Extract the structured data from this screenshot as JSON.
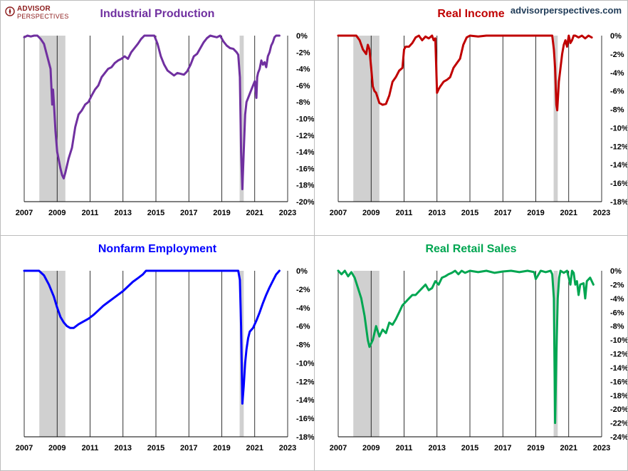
{
  "logo": {
    "line1": "ADVISOR",
    "line2": "PERSPECTIVES"
  },
  "site": "advisorperspectives.com",
  "recessions": [
    [
      2007.917,
      2009.5
    ],
    [
      2020.083,
      2020.333
    ]
  ],
  "chart_data": [
    {
      "type": "line",
      "title": "Industrial Production",
      "color": "#7030a0",
      "x_ticks": [
        2007,
        2009,
        2011,
        2013,
        2015,
        2017,
        2019,
        2021,
        2023
      ],
      "y_ticks": [
        0,
        -2,
        -4,
        -6,
        -8,
        -10,
        -12,
        -14,
        -16,
        -18,
        -20
      ],
      "y_tick_labels": [
        "0%",
        "-2%",
        "-4%",
        "-6%",
        "-8%",
        "-10%",
        "-12%",
        "-14%",
        "-16%",
        "-18%",
        "-20%"
      ],
      "xlim": [
        2007,
        2023
      ],
      "ylim": [
        -20,
        0
      ],
      "grid": "vertical",
      "x": [
        2007.0,
        2007.2,
        2007.4,
        2007.6,
        2007.8,
        2008.0,
        2008.2,
        2008.4,
        2008.6,
        2008.7,
        2008.75,
        2008.8,
        2008.9,
        2009.0,
        2009.1,
        2009.2,
        2009.3,
        2009.4,
        2009.5,
        2009.7,
        2009.9,
        2010.1,
        2010.3,
        2010.5,
        2010.7,
        2010.9,
        2011.1,
        2011.3,
        2011.5,
        2011.7,
        2011.9,
        2012.1,
        2012.3,
        2012.5,
        2012.7,
        2012.9,
        2013.1,
        2013.3,
        2013.5,
        2013.7,
        2013.9,
        2014.1,
        2014.3,
        2014.5,
        2014.7,
        2014.9,
        2015.1,
        2015.3,
        2015.5,
        2015.7,
        2015.9,
        2016.1,
        2016.3,
        2016.5,
        2016.7,
        2016.9,
        2017.1,
        2017.3,
        2017.5,
        2017.7,
        2017.9,
        2018.1,
        2018.3,
        2018.5,
        2018.7,
        2018.9,
        2019.1,
        2019.3,
        2019.5,
        2019.7,
        2019.9,
        2020.0,
        2020.1,
        2020.17,
        2020.25,
        2020.33,
        2020.42,
        2020.5,
        2020.6,
        2020.7,
        2020.8,
        2020.9,
        2021.0,
        2021.1,
        2021.15,
        2021.2,
        2021.3,
        2021.4,
        2021.5,
        2021.6,
        2021.7,
        2021.8,
        2021.9,
        2022.0,
        2022.1,
        2022.2,
        2022.3,
        2022.4,
        2022.5
      ],
      "y": [
        -0.2,
        0,
        -0.1,
        0,
        0,
        -0.4,
        -1.0,
        -2.5,
        -4.0,
        -8.3,
        -6.5,
        -8.0,
        -11.5,
        -14.0,
        -15.0,
        -16.0,
        -16.8,
        -17.2,
        -16.5,
        -14.8,
        -13.5,
        -11.0,
        -9.5,
        -9.0,
        -8.3,
        -8.0,
        -7.2,
        -6.5,
        -6.0,
        -5.0,
        -4.5,
        -4.0,
        -3.8,
        -3.3,
        -3.0,
        -2.8,
        -2.5,
        -2.8,
        -2.0,
        -1.5,
        -1.0,
        -0.4,
        0,
        0,
        0,
        0,
        -1.0,
        -2.5,
        -3.5,
        -4.2,
        -4.5,
        -4.8,
        -4.5,
        -4.6,
        -4.7,
        -4.3,
        -3.5,
        -2.5,
        -2.2,
        -1.5,
        -0.8,
        -0.3,
        0,
        -0.1,
        -0.2,
        0,
        -0.7,
        -1.2,
        -1.5,
        -1.6,
        -2.0,
        -2.3,
        -5.0,
        -14.0,
        -18.5,
        -14.0,
        -9.5,
        -8.0,
        -7.5,
        -7.0,
        -6.5,
        -6.0,
        -5.5,
        -7.5,
        -5.0,
        -4.5,
        -4.0,
        -3.0,
        -3.5,
        -3.2,
        -3.8,
        -2.5,
        -2.0,
        -1.2,
        -0.8,
        -0.2,
        0,
        0,
        0
      ]
    },
    {
      "type": "line",
      "title": "Real Income",
      "color": "#c00000",
      "x_ticks": [
        2007,
        2009,
        2011,
        2013,
        2015,
        2017,
        2019,
        2021,
        2023
      ],
      "y_ticks": [
        0,
        -2,
        -4,
        -6,
        -8,
        -10,
        -12,
        -14,
        -16,
        -18
      ],
      "y_tick_labels": [
        "0%",
        "-2%",
        "-4%",
        "-6%",
        "-8%",
        "-10%",
        "-12%",
        "-14%",
        "-16%",
        "-18%"
      ],
      "xlim": [
        2007,
        2023
      ],
      "ylim": [
        -18,
        0
      ],
      "grid": "vertical",
      "x": [
        2007.0,
        2007.3,
        2007.6,
        2007.9,
        2008.1,
        2008.3,
        2008.5,
        2008.7,
        2008.8,
        2008.9,
        2009.0,
        2009.1,
        2009.2,
        2009.3,
        2009.5,
        2009.7,
        2009.9,
        2010.1,
        2010.3,
        2010.5,
        2010.7,
        2010.9,
        2011.0,
        2011.1,
        2011.3,
        2011.5,
        2011.7,
        2011.9,
        2012.1,
        2012.3,
        2012.5,
        2012.7,
        2012.8,
        2012.9,
        2013.0,
        2013.1,
        2013.2,
        2013.4,
        2013.6,
        2013.8,
        2014.0,
        2014.2,
        2014.4,
        2014.6,
        2014.8,
        2015.0,
        2015.5,
        2016.0,
        2016.5,
        2017.0,
        2017.5,
        2018.0,
        2018.5,
        2019.0,
        2019.5,
        2019.8,
        2020.0,
        2020.1,
        2020.17,
        2020.25,
        2020.3,
        2020.4,
        2020.5,
        2020.6,
        2020.7,
        2020.8,
        2020.9,
        2021.0,
        2021.1,
        2021.2,
        2021.3,
        2021.4,
        2021.6,
        2021.8,
        2022.0,
        2022.2,
        2022.4
      ],
      "y": [
        0,
        0,
        0,
        0,
        0,
        -0.5,
        -1.5,
        -2.0,
        -1.0,
        -1.5,
        -3.5,
        -5.5,
        -6.0,
        -6.2,
        -7.3,
        -7.5,
        -7.4,
        -6.5,
        -5.0,
        -4.5,
        -3.8,
        -3.5,
        -1.5,
        -1.2,
        -1.2,
        -0.8,
        -0.2,
        0,
        -0.5,
        -0.1,
        -0.3,
        0,
        -0.5,
        -0.3,
        -6.2,
        -5.8,
        -5.5,
        -5.0,
        -4.8,
        -4.5,
        -3.5,
        -3.0,
        -2.5,
        -1.0,
        -0.2,
        0,
        -0.1,
        0,
        0,
        0,
        0,
        0,
        0,
        0,
        0,
        0,
        0,
        -1.5,
        -3.5,
        -7.5,
        -8.1,
        -5.0,
        -3.5,
        -2.0,
        -1.0,
        -0.5,
        -1.2,
        0,
        -0.8,
        -0.5,
        0,
        0,
        -0.2,
        0,
        -0.3,
        0,
        -0.2
      ]
    },
    {
      "type": "line",
      "title": "Nonfarm Employment",
      "color": "#0000ff",
      "x_ticks": [
        2007,
        2009,
        2011,
        2013,
        2015,
        2017,
        2019,
        2021,
        2023
      ],
      "y_ticks": [
        0,
        -2,
        -4,
        -6,
        -8,
        -10,
        -12,
        -14,
        -16,
        -18
      ],
      "y_tick_labels": [
        "0%",
        "-2%",
        "-4%",
        "-6%",
        "-8%",
        "-10%",
        "-12%",
        "-14%",
        "-16%",
        "-18%"
      ],
      "xlim": [
        2007,
        2023
      ],
      "ylim": [
        -18,
        0
      ],
      "grid": "vertical",
      "x": [
        2007.0,
        2007.5,
        2007.9,
        2008.2,
        2008.5,
        2008.8,
        2009.0,
        2009.2,
        2009.4,
        2009.6,
        2009.8,
        2010.0,
        2010.3,
        2010.6,
        2010.9,
        2011.2,
        2011.5,
        2011.8,
        2012.1,
        2012.4,
        2012.7,
        2013.0,
        2013.3,
        2013.6,
        2013.9,
        2014.2,
        2014.4,
        2015.0,
        2016.0,
        2017.0,
        2018.0,
        2019.0,
        2020.0,
        2020.1,
        2020.17,
        2020.25,
        2020.33,
        2020.42,
        2020.5,
        2020.6,
        2020.7,
        2020.9,
        2021.1,
        2021.3,
        2021.5,
        2021.7,
        2021.9,
        2022.1,
        2022.3,
        2022.5
      ],
      "y": [
        0,
        0,
        0,
        -0.5,
        -1.5,
        -2.8,
        -4.0,
        -5.0,
        -5.6,
        -6.0,
        -6.2,
        -6.2,
        -5.8,
        -5.5,
        -5.2,
        -4.8,
        -4.3,
        -3.8,
        -3.4,
        -3.0,
        -2.6,
        -2.2,
        -1.7,
        -1.2,
        -0.8,
        -0.4,
        0,
        0,
        0,
        0,
        0,
        0,
        0,
        -1.0,
        -6.0,
        -14.4,
        -12.5,
        -10.0,
        -8.5,
        -7.3,
        -6.6,
        -6.2,
        -5.4,
        -4.5,
        -3.5,
        -2.6,
        -1.8,
        -1.1,
        -0.4,
        0
      ]
    },
    {
      "type": "line",
      "title": "Real Retail Sales",
      "color": "#00a651",
      "x_ticks": [
        2007,
        2009,
        2011,
        2013,
        2015,
        2017,
        2019,
        2021,
        2023
      ],
      "y_ticks": [
        0,
        -2,
        -4,
        -6,
        -8,
        -10,
        -12,
        -14,
        -16,
        -18,
        -20,
        -22,
        -24
      ],
      "y_tick_labels": [
        "0%",
        "-2%",
        "-4%",
        "-6%",
        "-8%",
        "-10%",
        "-12%",
        "-14%",
        "-16%",
        "-18%",
        "-20%",
        "-22%",
        "-24%"
      ],
      "xlim": [
        2007,
        2023
      ],
      "ylim": [
        -24,
        0
      ],
      "grid": "vertical",
      "x": [
        2007.0,
        2007.2,
        2007.4,
        2007.6,
        2007.8,
        2008.0,
        2008.2,
        2008.4,
        2008.6,
        2008.8,
        2008.9,
        2009.0,
        2009.1,
        2009.2,
        2009.3,
        2009.5,
        2009.7,
        2009.9,
        2010.1,
        2010.3,
        2010.5,
        2010.7,
        2010.9,
        2011.1,
        2011.3,
        2011.5,
        2011.7,
        2011.9,
        2012.1,
        2012.3,
        2012.5,
        2012.7,
        2012.9,
        2013.1,
        2013.3,
        2013.5,
        2013.7,
        2013.9,
        2014.1,
        2014.3,
        2014.5,
        2014.7,
        2015.0,
        2015.5,
        2016.0,
        2016.5,
        2017.0,
        2017.5,
        2018.0,
        2018.5,
        2018.9,
        2019.0,
        2019.3,
        2019.6,
        2019.9,
        2020.0,
        2020.1,
        2020.17,
        2020.25,
        2020.33,
        2020.42,
        2020.5,
        2020.7,
        2020.9,
        2021.0,
        2021.1,
        2021.2,
        2021.3,
        2021.4,
        2021.5,
        2021.6,
        2021.7,
        2021.9,
        2022.0,
        2022.1,
        2022.3,
        2022.5
      ],
      "y": [
        0,
        -0.5,
        0,
        -0.8,
        -0.2,
        -1.0,
        -2.5,
        -4.0,
        -6.5,
        -10.0,
        -11.0,
        -10.5,
        -10.0,
        -9.0,
        -8.0,
        -9.5,
        -8.5,
        -9.0,
        -7.5,
        -7.8,
        -7.0,
        -6.0,
        -5.0,
        -4.5,
        -4.0,
        -3.5,
        -3.5,
        -3.0,
        -2.5,
        -2.0,
        -2.8,
        -2.5,
        -1.5,
        -2.0,
        -1.0,
        -0.8,
        -0.5,
        -0.3,
        0,
        -0.5,
        0,
        -0.3,
        0,
        -0.2,
        0,
        -0.3,
        -0.1,
        0,
        -0.2,
        0,
        -0.2,
        -1.2,
        0,
        -0.2,
        0,
        -0.5,
        -4.0,
        -22.0,
        -12.0,
        -4.0,
        -1.0,
        0,
        -0.3,
        0,
        -1.0,
        -2.0,
        0,
        -0.3,
        -2.0,
        -1.5,
        -3.5,
        -2.0,
        -1.8,
        -4.0,
        -1.5,
        -1.0,
        -2.0
      ]
    }
  ]
}
